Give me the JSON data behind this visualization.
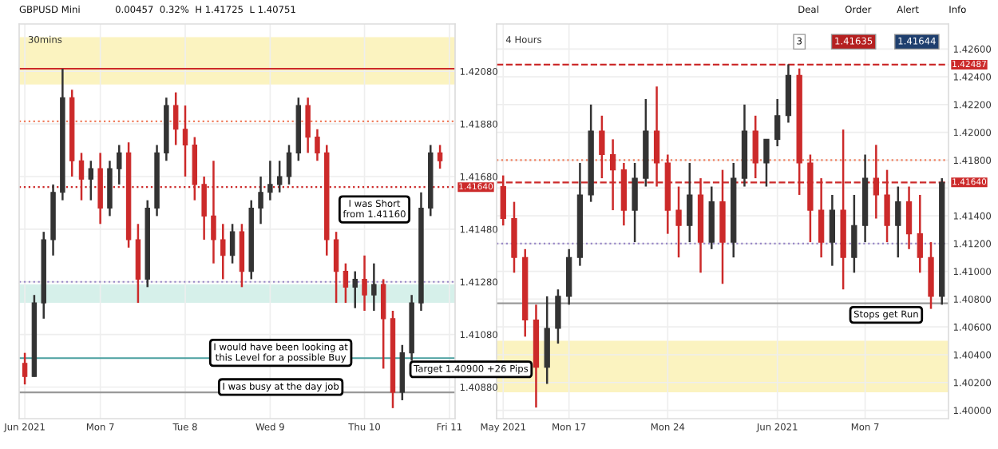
{
  "chart_data": [
    {
      "type": "candlestick",
      "title": "30mins",
      "categories": [
        "Jun 2021",
        null,
        null,
        null,
        null,
        null,
        null,
        null,
        "Mon 7",
        null,
        null,
        null,
        null,
        null,
        null,
        null,
        null,
        "Tue 8",
        null,
        null,
        null,
        null,
        null,
        null,
        null,
        null,
        "Wed 9",
        null,
        null,
        null,
        null,
        null,
        null,
        null,
        null,
        null,
        "Thu 10",
        null,
        null,
        null,
        null,
        null,
        null,
        null,
        null,
        "Fri 11"
      ],
      "ohlc": [
        [
          1.4097,
          1.4101,
          1.4089,
          1.4092
        ],
        [
          1.4092,
          1.4123,
          1.4092,
          1.412
        ],
        [
          1.412,
          1.4147,
          1.4114,
          1.4144
        ],
        [
          1.4144,
          1.4165,
          1.4138,
          1.4162
        ],
        [
          1.4162,
          1.4209,
          1.4159,
          1.4198
        ],
        [
          1.4198,
          1.4201,
          1.4168,
          1.4174
        ],
        [
          1.4174,
          1.4177,
          1.4159,
          1.4167
        ],
        [
          1.4167,
          1.4174,
          1.4159,
          1.4171
        ],
        [
          1.4171,
          1.4177,
          1.415,
          1.4156
        ],
        [
          1.4156,
          1.4174,
          1.4153,
          1.4171
        ],
        [
          1.4171,
          1.418,
          1.4165,
          1.4177
        ],
        [
          1.4177,
          1.4181,
          1.4141,
          1.4144
        ],
        [
          1.4144,
          1.415,
          1.412,
          1.4129
        ],
        [
          1.4129,
          1.4159,
          1.4126,
          1.4156
        ],
        [
          1.4156,
          1.418,
          1.4153,
          1.4177
        ],
        [
          1.4177,
          1.4198,
          1.4174,
          1.4195
        ],
        [
          1.4195,
          1.42,
          1.418,
          1.4186
        ],
        [
          1.4186,
          1.4195,
          1.4168,
          1.418
        ],
        [
          1.418,
          1.4183,
          1.4159,
          1.4165
        ],
        [
          1.4165,
          1.4168,
          1.4144,
          1.4153
        ],
        [
          1.4153,
          1.4174,
          1.4135,
          1.4144
        ],
        [
          1.4144,
          1.415,
          1.4129,
          1.4138
        ],
        [
          1.4138,
          1.415,
          1.4135,
          1.4147
        ],
        [
          1.4147,
          1.415,
          1.4126,
          1.4132
        ],
        [
          1.4132,
          1.4159,
          1.4129,
          1.4156
        ],
        [
          1.4156,
          1.4168,
          1.415,
          1.4162
        ],
        [
          1.4162,
          1.4174,
          1.4159,
          1.4165
        ],
        [
          1.4165,
          1.4174,
          1.4162,
          1.4168
        ],
        [
          1.4168,
          1.418,
          1.4165,
          1.4177
        ],
        [
          1.4177,
          1.4198,
          1.4174,
          1.4195
        ],
        [
          1.4195,
          1.4198,
          1.4177,
          1.4183
        ],
        [
          1.4183,
          1.4186,
          1.4174,
          1.4177
        ],
        [
          1.4177,
          1.418,
          1.4138,
          1.4144
        ],
        [
          1.4144,
          1.4147,
          1.412,
          1.4132
        ],
        [
          1.4132,
          1.4135,
          1.412,
          1.4126
        ],
        [
          1.4126,
          1.4132,
          1.4118,
          1.4129
        ],
        [
          1.4129,
          1.4138,
          1.4117,
          1.4123
        ],
        [
          1.4123,
          1.4135,
          1.4117,
          1.4127
        ],
        [
          1.4127,
          1.4129,
          1.4095,
          1.4114
        ],
        [
          1.4114,
          1.4117,
          1.408,
          1.4086
        ],
        [
          1.4086,
          1.4104,
          1.4083,
          1.4101
        ],
        [
          1.4101,
          1.4123,
          1.4098,
          1.412
        ],
        [
          1.412,
          1.4162,
          1.4117,
          1.4156
        ],
        [
          1.4156,
          1.418,
          1.4153,
          1.4177
        ],
        [
          1.4177,
          1.418,
          1.4171,
          1.4174
        ],
        null
      ],
      "colors": [
        "#cc2a2a",
        "#333333",
        "#333333",
        "#333333",
        "#333333",
        "#cc2a2a",
        "#cc2a2a",
        "#333333",
        "#cc2a2a",
        "#333333",
        "#333333",
        "#cc2a2a",
        "#cc2a2a",
        "#333333",
        "#333333",
        "#333333",
        "#cc2a2a",
        "#cc2a2a",
        "#cc2a2a",
        "#cc2a2a",
        "#cc2a2a",
        "#cc2a2a",
        "#333333",
        "#cc2a2a",
        "#333333",
        "#333333",
        "#333333",
        "#333333",
        "#333333",
        "#333333",
        "#cc2a2a",
        "#cc2a2a",
        "#cc2a2a",
        "#cc2a2a",
        "#cc2a2a",
        "#333333",
        "#cc2a2a",
        "#333333",
        "#cc2a2a",
        "#cc2a2a",
        "#333333",
        "#333333",
        "#333333",
        "#333333",
        "#cc2a2a",
        null
      ],
      "ylim": [
        1.4076,
        1.4226
      ],
      "yticks": [
        {
          "value": 1.4088,
          "label": "1.40880"
        },
        {
          "value": 1.4108,
          "label": "1.41080"
        },
        {
          "value": 1.4128,
          "label": "1.41280"
        },
        {
          "value": 1.4148,
          "label": "1.41480"
        },
        {
          "value": 1.4168,
          "label": "1.41680"
        },
        {
          "value": 1.4188,
          "label": "1.41880"
        },
        {
          "value": 1.4208,
          "label": "1.42080"
        }
      ],
      "grid": true,
      "ref_lines": [
        {
          "axis": "y",
          "value": 1.4209,
          "color": "#cc2a2a",
          "line_style": "solid"
        },
        {
          "axis": "y",
          "value": 1.4189,
          "color": "#f08060",
          "line_style": "dotted"
        },
        {
          "axis": "y",
          "value": 1.4164,
          "label": "1.41640",
          "color": "#cc2a2a",
          "line_style": "dotted"
        },
        {
          "axis": "y",
          "value": 1.4128,
          "color": "#9a8ac8",
          "line_style": "dotted"
        },
        {
          "axis": "y",
          "value": 1.4099,
          "color": "#4aa0a0",
          "line_style": "solid"
        },
        {
          "axis": "y",
          "value": 1.4086,
          "color": "#999999",
          "line_style": "solid"
        }
      ],
      "bands": [
        {
          "axis": "y",
          "from": 1.4203,
          "to": 1.4221,
          "color": "#fbf3c0"
        },
        {
          "axis": "y",
          "from": 1.412,
          "to": 1.4127,
          "color": "#d6f0ea"
        }
      ],
      "annotations": [
        "GBPUSD Mini",
        "0.00457  0.32%  H 1.41725  L 1.40751",
        "I was Short\nfrom 1.41160",
        {
          "text": "I would have been looking at\nthis Level for a possible Buy",
          "y": 1.4101
        },
        {
          "text": "I was busy at the day job",
          "y": 1.4088
        },
        "Target 1.40900 +26 Pips"
      ]
    },
    {
      "type": "candlestick",
      "title": "4 Hours",
      "categories": [
        "May 2021",
        null,
        null,
        null,
        null,
        null,
        "Mon 17",
        null,
        null,
        null,
        null,
        null,
        null,
        null,
        null,
        "Mon 24",
        null,
        null,
        null,
        null,
        null,
        null,
        null,
        null,
        null,
        "Jun 2021",
        null,
        null,
        null,
        null,
        null,
        null,
        null,
        "Mon 7",
        null,
        null,
        null,
        null,
        null,
        null,
        null
      ],
      "ohlc": [
        [
          1.4161,
          1.4169,
          1.4133,
          1.4138
        ],
        [
          1.4138,
          1.415,
          1.4099,
          1.411
        ],
        [
          1.411,
          1.4116,
          1.4053,
          1.4065
        ],
        [
          1.4065,
          1.4076,
          1.4002,
          1.4031
        ],
        [
          1.4031,
          1.4082,
          1.4019,
          1.4059
        ],
        [
          1.4059,
          1.4087,
          1.4048,
          1.4082
        ],
        [
          1.4082,
          1.4116,
          1.4076,
          1.411
        ],
        [
          1.411,
          1.4178,
          1.4104,
          1.4155
        ],
        [
          1.4155,
          1.422,
          1.415,
          1.4201
        ],
        [
          1.4201,
          1.4212,
          1.4167,
          1.4184
        ],
        [
          1.4184,
          1.4195,
          1.4144,
          1.4173
        ],
        [
          1.4173,
          1.4178,
          1.4133,
          1.4144
        ],
        [
          1.4144,
          1.4178,
          1.4121,
          1.4167
        ],
        [
          1.4167,
          1.4224,
          1.4161,
          1.4201
        ],
        [
          1.4201,
          1.4233,
          1.4161,
          1.4178
        ],
        [
          1.4178,
          1.4184,
          1.4127,
          1.4144
        ],
        [
          1.4144,
          1.4161,
          1.411,
          1.4133
        ],
        [
          1.4133,
          1.4178,
          1.4121,
          1.4155
        ],
        [
          1.4155,
          1.4167,
          1.4099,
          1.4121
        ],
        [
          1.4121,
          1.4161,
          1.4116,
          1.415
        ],
        [
          1.415,
          1.4173,
          1.4091,
          1.4121
        ],
        [
          1.4121,
          1.4178,
          1.411,
          1.4167
        ],
        [
          1.4167,
          1.422,
          1.4161,
          1.4201
        ],
        [
          1.4201,
          1.4212,
          1.4167,
          1.4178
        ],
        [
          1.4178,
          1.4195,
          1.4161,
          1.4195
        ],
        [
          1.4195,
          1.4224,
          1.419,
          1.4212
        ],
        [
          1.4212,
          1.4249,
          1.4207,
          1.4241
        ],
        [
          1.4241,
          1.4246,
          1.4155,
          1.4178
        ],
        [
          1.4178,
          1.4184,
          1.4121,
          1.4144
        ],
        [
          1.4144,
          1.4167,
          1.411,
          1.4121
        ],
        [
          1.4121,
          1.4155,
          1.4104,
          1.4144
        ],
        [
          1.4144,
          1.4202,
          1.4087,
          1.411
        ],
        [
          1.411,
          1.4155,
          1.4099,
          1.4133
        ],
        [
          1.4133,
          1.4184,
          1.4121,
          1.4167
        ],
        [
          1.4167,
          1.4191,
          1.4138,
          1.4155
        ],
        [
          1.4155,
          1.4173,
          1.4121,
          1.4133
        ],
        [
          1.4133,
          1.4161,
          1.411,
          1.415
        ],
        [
          1.415,
          1.4161,
          1.4116,
          1.4127
        ],
        [
          1.4127,
          1.4155,
          1.4099,
          1.411
        ],
        [
          1.411,
          1.4121,
          1.4073,
          1.4082
        ],
        [
          1.4082,
          1.4167,
          1.4076,
          1.4164
        ]
      ],
      "colors": [
        "#cc2a2a",
        "#cc2a2a",
        "#cc2a2a",
        "#cc2a2a",
        "#333333",
        "#333333",
        "#333333",
        "#333333",
        "#333333",
        "#cc2a2a",
        "#cc2a2a",
        "#cc2a2a",
        "#333333",
        "#333333",
        "#cc2a2a",
        "#cc2a2a",
        "#cc2a2a",
        "#333333",
        "#cc2a2a",
        "#333333",
        "#cc2a2a",
        "#333333",
        "#333333",
        "#cc2a2a",
        "#333333",
        "#333333",
        "#333333",
        "#cc2a2a",
        "#cc2a2a",
        "#cc2a2a",
        "#333333",
        "#cc2a2a",
        "#333333",
        "#333333",
        "#cc2a2a",
        "#cc2a2a",
        "#333333",
        "#cc2a2a",
        "#cc2a2a",
        "#cc2a2a",
        "#333333"
      ],
      "ylim": [
        1.3994,
        1.4278
      ],
      "yticks": [
        {
          "value": 1.4,
          "label": "1.40000"
        },
        {
          "value": 1.402,
          "label": "1.40200"
        },
        {
          "value": 1.404,
          "label": "1.40400"
        },
        {
          "value": 1.406,
          "label": "1.40600"
        },
        {
          "value": 1.408,
          "label": "1.40800"
        },
        {
          "value": 1.41,
          "label": "1.41000"
        },
        {
          "value": 1.412,
          "label": "1.41200"
        },
        {
          "value": 1.414,
          "label": "1.41400"
        },
        {
          "value": 1.416,
          "label": null
        },
        {
          "value": 1.418,
          "label": "1.41800"
        },
        {
          "value": 1.42,
          "label": "1.42000"
        },
        {
          "value": 1.422,
          "label": "1.42200"
        },
        {
          "value": 1.424,
          "label": "1.42400"
        },
        {
          "value": 1.426,
          "label": "1.42600"
        }
      ],
      "grid": true,
      "ref_lines": [
        {
          "axis": "y",
          "value": 1.42487,
          "label": "1.42487",
          "color": "#cc2a2a",
          "line_style": "dashed"
        },
        {
          "axis": "y",
          "value": 1.418,
          "color": "#f08060",
          "line_style": "dotted"
        },
        {
          "axis": "y",
          "value": 1.4164,
          "label": "1.41640",
          "color": "#cc2a2a",
          "line_style": "dashed"
        },
        {
          "axis": "y",
          "value": 1.412,
          "color": "#9a8ac8",
          "line_style": "dotted"
        },
        {
          "axis": "y",
          "value": 1.4077,
          "color": "#999999",
          "line_style": "solid"
        }
      ],
      "bands": [
        {
          "axis": "y",
          "from": 1.4013,
          "to": 1.405,
          "color": "#fbf3c0"
        }
      ],
      "annotations": [
        "Deal",
        "Order",
        "Alert",
        "Info",
        "3",
        "1.41635",
        "1.41644",
        "Stops get Run"
      ]
    }
  ]
}
